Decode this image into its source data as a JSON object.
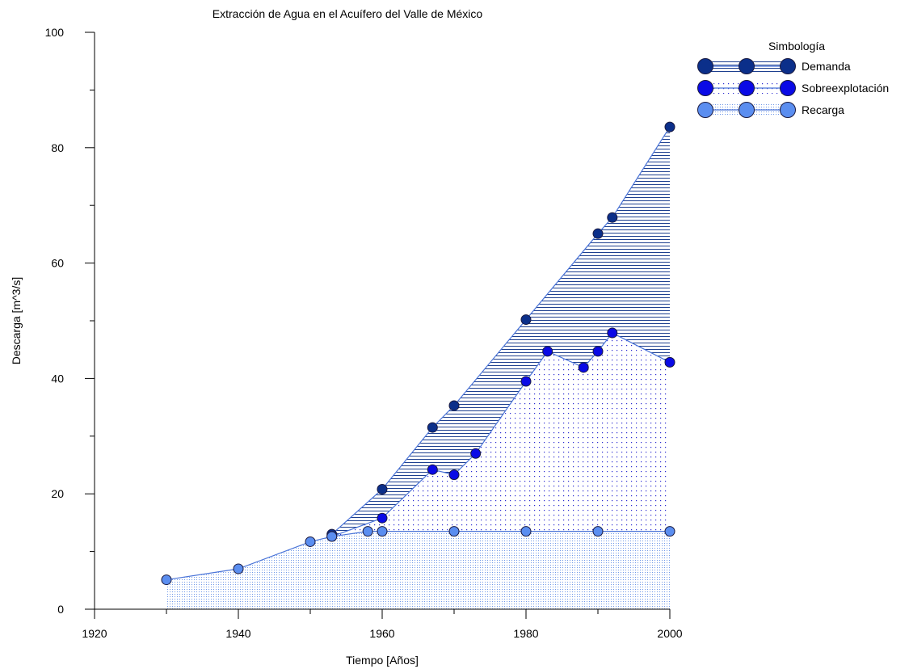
{
  "chart_data": {
    "type": "area",
    "title": "Extracción de Agua en el Acuífero del Valle de México",
    "xlabel": "Tiempo [Años]",
    "ylabel": "Descarga [m^3/s]",
    "xlim": [
      1920,
      2000
    ],
    "ylim": [
      0,
      100
    ],
    "x_ticks": [
      1920,
      1940,
      1960,
      1980,
      2000
    ],
    "y_ticks": [
      0,
      20,
      40,
      60,
      80,
      100
    ],
    "grid": false,
    "legend": {
      "title": "Simbología",
      "placement": "top-right"
    },
    "series": [
      {
        "name": "Demanda",
        "color": "#0b2f8a",
        "fill": "horizontal-lines",
        "points": [
          [
            1953,
            13.0
          ],
          [
            1960,
            20.8
          ],
          [
            1967,
            31.5
          ],
          [
            1970,
            35.3
          ],
          [
            1980,
            50.2
          ],
          [
            1990,
            65.1
          ],
          [
            1992,
            67.9
          ],
          [
            2000,
            83.6
          ]
        ]
      },
      {
        "name": "Sobreexplotación",
        "color": "#0a0ae6",
        "fill": "sparse-dots",
        "points": [
          [
            1953,
            12.6
          ],
          [
            1960,
            15.8
          ],
          [
            1967,
            24.2
          ],
          [
            1970,
            23.3
          ],
          [
            1973,
            27.0
          ],
          [
            1980,
            39.5
          ],
          [
            1983,
            44.7
          ],
          [
            1988,
            41.9
          ],
          [
            1990,
            44.7
          ],
          [
            1992,
            47.9
          ],
          [
            2000,
            42.8
          ]
        ]
      },
      {
        "name": "Recarga",
        "color": "#5b8ef0",
        "fill": "dense-dots",
        "points": [
          [
            1930,
            5.1
          ],
          [
            1940,
            7.0
          ],
          [
            1950,
            11.7
          ],
          [
            1953,
            12.6
          ],
          [
            1958,
            13.5
          ],
          [
            1960,
            13.5
          ],
          [
            1970,
            13.5
          ],
          [
            1980,
            13.5
          ],
          [
            1990,
            13.5
          ],
          [
            2000,
            13.5
          ]
        ]
      }
    ]
  }
}
